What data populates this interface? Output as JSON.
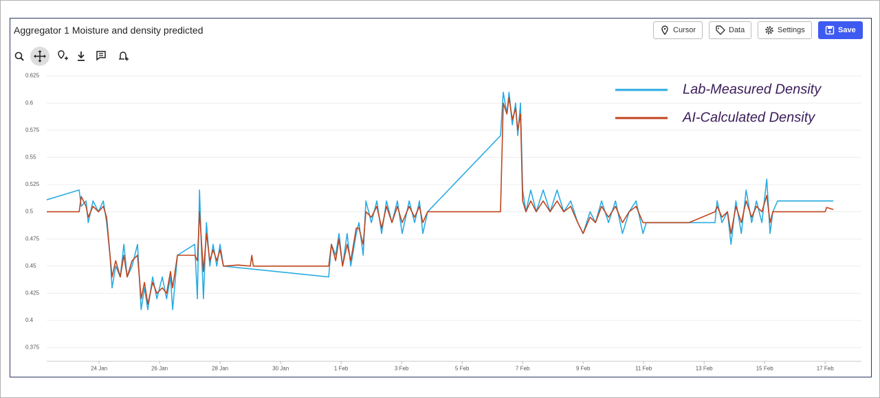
{
  "header": {
    "title": "Aggregator 1 Moisture and density predicted",
    "buttons": [
      "Cursor",
      "Data",
      "Settings",
      "Save"
    ]
  },
  "chart_data": {
    "type": "line",
    "xlim": [
      22.27,
      49.2
    ],
    "xticks": [
      {
        "value": 24,
        "label": "24 Jan"
      },
      {
        "value": 26,
        "label": "26 Jan"
      },
      {
        "value": 28,
        "label": "28 Jan"
      },
      {
        "value": 30,
        "label": "30 Jan"
      },
      {
        "value": 32,
        "label": "1 Feb"
      },
      {
        "value": 34,
        "label": "3 Feb"
      },
      {
        "value": 36,
        "label": "5 Feb"
      },
      {
        "value": 38,
        "label": "7 Feb"
      },
      {
        "value": 40,
        "label": "9 Feb"
      },
      {
        "value": 42,
        "label": "11 Feb"
      },
      {
        "value": 44,
        "label": "13 Feb"
      },
      {
        "value": 46,
        "label": "15 Feb"
      },
      {
        "value": 48,
        "label": "17 Feb"
      }
    ],
    "ylim": [
      0.3625,
      0.625
    ],
    "yticks": [
      0.375,
      0.4,
      0.425,
      0.45,
      0.475,
      0.5,
      0.525,
      0.55,
      0.575,
      0.6,
      0.625
    ],
    "grid": true,
    "legend_position": "upper right",
    "series": [
      {
        "name": "Lab-Measured Density",
        "color": "#29abe2",
        "x": [
          22.27,
          23.34,
          23.41,
          23.57,
          23.64,
          23.8,
          23.98,
          24.14,
          24.25,
          24.36,
          24.43,
          24.55,
          24.7,
          24.82,
          24.93,
          25.09,
          25.27,
          25.39,
          25.5,
          25.61,
          25.77,
          25.91,
          26.09,
          26.23,
          26.36,
          26.43,
          26.59,
          27.16,
          27.25,
          27.32,
          27.39,
          27.45,
          27.55,
          27.66,
          27.77,
          27.89,
          28.0,
          28.11,
          31.59,
          31.68,
          31.82,
          31.93,
          32.05,
          32.2,
          32.32,
          32.5,
          32.59,
          32.73,
          32.82,
          33.0,
          33.18,
          33.34,
          33.5,
          33.68,
          33.86,
          34.02,
          34.25,
          34.43,
          34.59,
          34.7,
          34.86,
          37.27,
          37.36,
          37.48,
          37.55,
          37.66,
          37.77,
          37.84,
          37.93,
          38.0,
          38.11,
          38.27,
          38.45,
          38.68,
          38.91,
          39.14,
          39.36,
          39.59,
          39.82,
          40.0,
          40.23,
          40.41,
          40.61,
          40.84,
          41.07,
          41.3,
          41.52,
          41.75,
          41.98,
          42.09,
          44.36,
          44.43,
          44.59,
          44.77,
          44.89,
          45.05,
          45.23,
          45.39,
          45.57,
          45.73,
          45.91,
          46.07,
          46.18,
          46.27,
          46.43,
          48.27
        ],
        "values": [
          0.511,
          0.52,
          0.505,
          0.51,
          0.49,
          0.51,
          0.5,
          0.51,
          0.49,
          0.46,
          0.43,
          0.45,
          0.44,
          0.47,
          0.44,
          0.45,
          0.47,
          0.41,
          0.43,
          0.41,
          0.44,
          0.42,
          0.44,
          0.42,
          0.44,
          0.41,
          0.46,
          0.47,
          0.42,
          0.52,
          0.46,
          0.42,
          0.49,
          0.45,
          0.47,
          0.45,
          0.47,
          0.45,
          0.44,
          0.47,
          0.46,
          0.48,
          0.45,
          0.48,
          0.45,
          0.48,
          0.49,
          0.46,
          0.51,
          0.49,
          0.51,
          0.48,
          0.51,
          0.49,
          0.51,
          0.48,
          0.51,
          0.49,
          0.51,
          0.48,
          0.5,
          0.57,
          0.61,
          0.59,
          0.61,
          0.58,
          0.6,
          0.57,
          0.6,
          0.52,
          0.5,
          0.52,
          0.5,
          0.52,
          0.5,
          0.52,
          0.5,
          0.51,
          0.49,
          0.48,
          0.5,
          0.49,
          0.51,
          0.49,
          0.51,
          0.48,
          0.5,
          0.51,
          0.48,
          0.49,
          0.49,
          0.51,
          0.49,
          0.5,
          0.47,
          0.51,
          0.48,
          0.52,
          0.49,
          0.51,
          0.49,
          0.53,
          0.48,
          0.5,
          0.51,
          0.51
        ]
      },
      {
        "name": "AI-Calculated Density",
        "color": "#c0441c",
        "x": [
          22.27,
          23.34,
          23.41,
          23.57,
          23.64,
          23.8,
          23.98,
          24.14,
          24.25,
          24.36,
          24.43,
          24.55,
          24.7,
          24.82,
          24.93,
          25.09,
          25.27,
          25.39,
          25.5,
          25.61,
          25.77,
          25.91,
          26.09,
          26.23,
          26.36,
          26.43,
          26.59,
          27.16,
          27.25,
          27.32,
          27.39,
          27.45,
          27.55,
          27.66,
          27.77,
          27.89,
          28.0,
          28.11,
          28.6,
          29.0,
          29.05,
          29.1,
          31.59,
          31.68,
          31.82,
          31.93,
          32.05,
          32.2,
          32.32,
          32.5,
          32.59,
          32.73,
          32.82,
          33.0,
          33.18,
          33.34,
          33.5,
          33.68,
          33.86,
          34.02,
          34.25,
          34.43,
          34.59,
          34.7,
          34.86,
          37.27,
          37.36,
          37.48,
          37.55,
          37.66,
          37.77,
          37.84,
          37.93,
          38.0,
          38.11,
          38.27,
          38.45,
          38.68,
          38.91,
          39.14,
          39.36,
          39.59,
          39.82,
          40.0,
          40.23,
          40.41,
          40.61,
          40.84,
          41.07,
          41.3,
          41.52,
          41.75,
          41.98,
          42.09,
          43.5,
          44.36,
          44.43,
          44.59,
          44.77,
          44.89,
          45.05,
          45.23,
          45.39,
          45.57,
          45.73,
          45.91,
          46.07,
          46.18,
          46.27,
          46.43,
          48.0,
          48.05,
          48.27
        ],
        "values": [
          0.5,
          0.5,
          0.514,
          0.505,
          0.495,
          0.505,
          0.5,
          0.505,
          0.495,
          0.46,
          0.44,
          0.455,
          0.44,
          0.46,
          0.44,
          0.455,
          0.46,
          0.42,
          0.435,
          0.415,
          0.435,
          0.425,
          0.43,
          0.425,
          0.445,
          0.43,
          0.46,
          0.46,
          0.455,
          0.5,
          0.47,
          0.445,
          0.48,
          0.455,
          0.465,
          0.455,
          0.465,
          0.45,
          0.451,
          0.45,
          0.46,
          0.45,
          0.45,
          0.47,
          0.455,
          0.475,
          0.45,
          0.47,
          0.455,
          0.485,
          0.485,
          0.47,
          0.5,
          0.495,
          0.505,
          0.485,
          0.505,
          0.49,
          0.505,
          0.49,
          0.505,
          0.495,
          0.505,
          0.49,
          0.5,
          0.5,
          0.6,
          0.59,
          0.605,
          0.585,
          0.595,
          0.575,
          0.59,
          0.51,
          0.5,
          0.51,
          0.5,
          0.51,
          0.5,
          0.51,
          0.5,
          0.505,
          0.49,
          0.48,
          0.495,
          0.49,
          0.505,
          0.495,
          0.505,
          0.49,
          0.5,
          0.505,
          0.49,
          0.49,
          0.49,
          0.5,
          0.505,
          0.495,
          0.5,
          0.48,
          0.505,
          0.49,
          0.51,
          0.495,
          0.505,
          0.5,
          0.515,
          0.49,
          0.5,
          0.5,
          0.5,
          0.504,
          0.502
        ]
      }
    ]
  }
}
